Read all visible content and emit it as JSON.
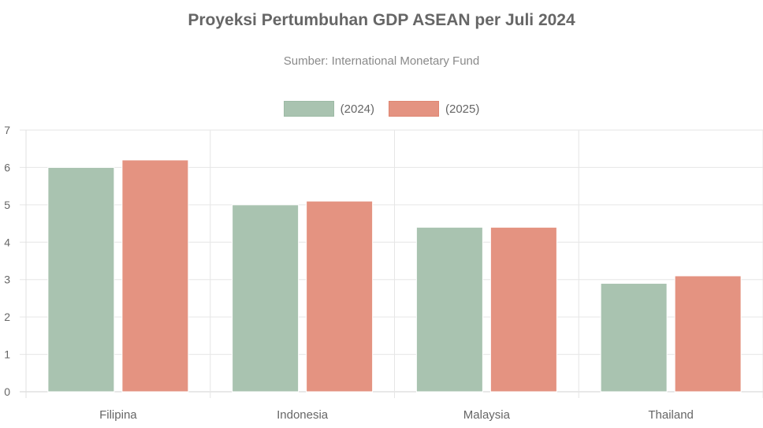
{
  "colors": {
    "series_2024": "#a9c3b0",
    "series_2025": "#e49381",
    "grid": "#e6e6e6",
    "text": "#666666"
  },
  "chart_data": {
    "type": "bar",
    "title": "Proyeksi Pertumbuhan GDP ASEAN per Juli 2024",
    "subtitle": "Sumber: International Monetary Fund",
    "categories": [
      "Filipina",
      "Indonesia",
      "Malaysia",
      "Thailand"
    ],
    "series": [
      {
        "name": "(2024)",
        "values": [
          6.0,
          5.0,
          4.4,
          2.9
        ],
        "color": "#a9c3b0"
      },
      {
        "name": "(2025)",
        "values": [
          6.2,
          5.1,
          4.4,
          3.1
        ],
        "color": "#e49381"
      }
    ],
    "ylim": [
      0,
      7
    ],
    "yticks": [
      "0",
      "1",
      "2",
      "3",
      "4",
      "5",
      "6",
      "7"
    ],
    "grid": true,
    "legend_position": "top-center"
  }
}
